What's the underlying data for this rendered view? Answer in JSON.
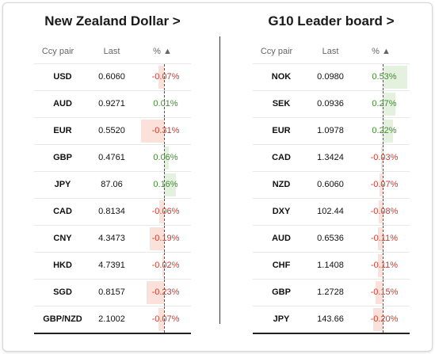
{
  "left": {
    "title": "New Zealand Dollar >",
    "columns": {
      "pair": "Ccy pair",
      "last": "Last",
      "pct": "% ▲"
    },
    "rows": [
      {
        "pair": "USD",
        "last": "0.6060",
        "pct": "-0.07%",
        "value": -0.07
      },
      {
        "pair": "AUD",
        "last": "0.9271",
        "pct": "0.01%",
        "value": 0.01
      },
      {
        "pair": "EUR",
        "last": "0.5520",
        "pct": "-0.31%",
        "value": -0.31
      },
      {
        "pair": "GBP",
        "last": "0.4761",
        "pct": "0.06%",
        "value": 0.06
      },
      {
        "pair": "JPY",
        "last": "87.06",
        "pct": "0.16%",
        "value": 0.16
      },
      {
        "pair": "CAD",
        "last": "0.8134",
        "pct": "-0.06%",
        "value": -0.06
      },
      {
        "pair": "CNY",
        "last": "4.3473",
        "pct": "-0.19%",
        "value": -0.19
      },
      {
        "pair": "HKD",
        "last": "4.7391",
        "pct": "-0.02%",
        "value": -0.02
      },
      {
        "pair": "SGD",
        "last": "0.8157",
        "pct": "-0.23%",
        "value": -0.23
      },
      {
        "pair": "GBP/NZD",
        "last": "2.1002",
        "pct": "-0.07%",
        "value": -0.07
      }
    ]
  },
  "right": {
    "title": "G10 Leader board >",
    "columns": {
      "pair": "Ccy pair",
      "last": "Last",
      "pct": "% ▲"
    },
    "rows": [
      {
        "pair": "NOK",
        "last": "0.0980",
        "pct": "0.53%",
        "value": 0.53
      },
      {
        "pair": "SEK",
        "last": "0.0936",
        "pct": "0.27%",
        "value": 0.27
      },
      {
        "pair": "EUR",
        "last": "1.0978",
        "pct": "0.22%",
        "value": 0.22
      },
      {
        "pair": "CAD",
        "last": "1.3424",
        "pct": "-0.03%",
        "value": -0.03
      },
      {
        "pair": "NZD",
        "last": "0.6060",
        "pct": "-0.07%",
        "value": -0.07
      },
      {
        "pair": "DXY",
        "last": "102.44",
        "pct": "-0.08%",
        "value": -0.08
      },
      {
        "pair": "AUD",
        "last": "0.6536",
        "pct": "-0.11%",
        "value": -0.11
      },
      {
        "pair": "CHF",
        "last": "1.1408",
        "pct": "-0.11%",
        "value": -0.11
      },
      {
        "pair": "GBP",
        "last": "1.2728",
        "pct": "-0.15%",
        "value": -0.15
      },
      {
        "pair": "JPY",
        "last": "143.66",
        "pct": "-0.20%",
        "value": -0.2
      }
    ]
  },
  "colors": {
    "positive_text": "#3f8f2f",
    "negative_text": "#d23a2a",
    "positive_bar": "#e4f1de",
    "negative_bar": "#fbe1d9"
  }
}
